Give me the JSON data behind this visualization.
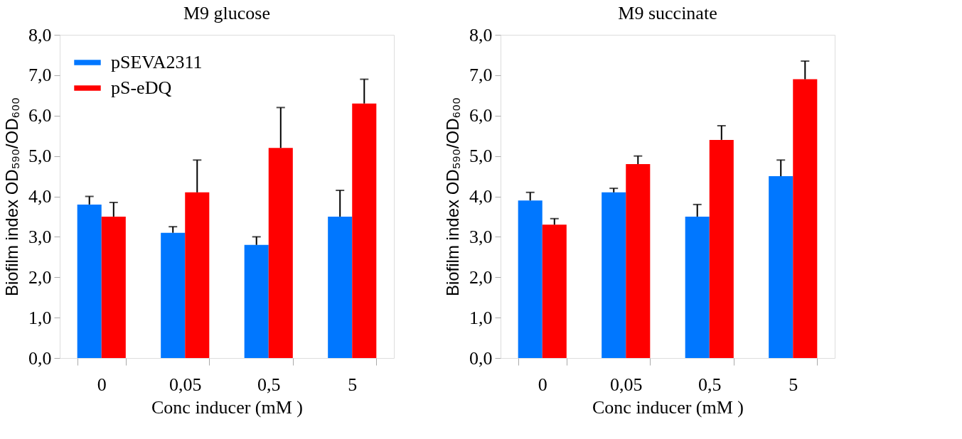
{
  "chart_data": [
    {
      "type": "bar",
      "title": "M9 glucose",
      "xlabel": "Conc inducer (mM )",
      "ylabel": "Biofilm index OD₅₉₀/OD₆₀₀",
      "categories": [
        "0",
        "0,05",
        "0,5",
        "5"
      ],
      "series": [
        {
          "name": "pSEVA2311",
          "color": "#0077ff",
          "values": [
            3.8,
            3.1,
            2.8,
            3.5
          ],
          "errors": [
            0.2,
            0.15,
            0.2,
            0.65
          ]
        },
        {
          "name": "pS-eDQ",
          "color": "#ff0000",
          "values": [
            3.5,
            4.1,
            5.2,
            6.3
          ],
          "errors": [
            0.35,
            0.8,
            1.0,
            0.6
          ]
        }
      ],
      "ylim": [
        0,
        8
      ],
      "yticks": [
        {
          "value": 0,
          "label": "0,0"
        },
        {
          "value": 1,
          "label": "1,0"
        },
        {
          "value": 2,
          "label": "2,0"
        },
        {
          "value": 3,
          "label": "3,0"
        },
        {
          "value": 4,
          "label": "4,0"
        },
        {
          "value": 5,
          "label": "5,0"
        },
        {
          "value": 6,
          "label": "6,0"
        },
        {
          "value": 7,
          "label": "7,0"
        },
        {
          "value": 8,
          "label": "8,0"
        }
      ],
      "grid": false,
      "legend": "top left"
    },
    {
      "type": "bar",
      "title": "M9 succinate",
      "xlabel": "Conc inducer (mM )",
      "ylabel": "Biofilm index OD₅₉₀/OD₆₀₀",
      "categories": [
        "0",
        "0,05",
        "0,5",
        "5"
      ],
      "series": [
        {
          "name": "pSEVA2311",
          "color": "#0077ff",
          "values": [
            3.9,
            4.1,
            3.5,
            4.5
          ],
          "errors": [
            0.2,
            0.1,
            0.3,
            0.4
          ]
        },
        {
          "name": "pS-eDQ",
          "color": "#ff0000",
          "values": [
            3.3,
            4.8,
            5.4,
            6.9
          ],
          "errors": [
            0.15,
            0.2,
            0.35,
            0.45
          ]
        }
      ],
      "ylim": [
        0,
        8
      ],
      "yticks": [
        {
          "value": 0,
          "label": "0,0"
        },
        {
          "value": 1,
          "label": "1,0"
        },
        {
          "value": 2,
          "label": "2,0"
        },
        {
          "value": 3,
          "label": "3,0"
        },
        {
          "value": 4,
          "label": "4,0"
        },
        {
          "value": 5,
          "label": "5,0"
        },
        {
          "value": 6,
          "label": "6,0"
        },
        {
          "value": 7,
          "label": "7,0"
        },
        {
          "value": 8,
          "label": "8,0"
        }
      ],
      "grid": false,
      "legend": "top left"
    }
  ]
}
